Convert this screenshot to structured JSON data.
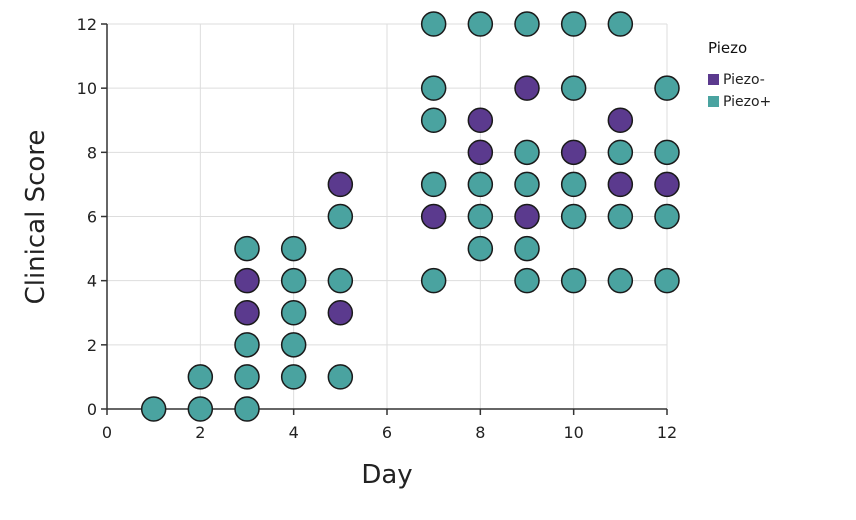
{
  "chart_data": {
    "type": "scatter",
    "title": "",
    "xlabel": "Day",
    "ylabel": "Clinical Score",
    "xlim": [
      0,
      12
    ],
    "ylim": [
      0,
      12
    ],
    "xticks": [
      0,
      2,
      4,
      6,
      8,
      10,
      12
    ],
    "yticks": [
      0,
      2,
      4,
      6,
      8,
      10,
      12
    ],
    "grid": true,
    "legend": {
      "title": "Piezo",
      "position": "top-right"
    },
    "series": [
      {
        "name": "Piezo-",
        "color": "#5b3a8e",
        "points": [
          [
            3,
            4
          ],
          [
            3,
            3
          ],
          [
            5,
            7
          ],
          [
            5,
            3
          ],
          [
            7,
            6
          ],
          [
            8,
            9
          ],
          [
            8,
            8
          ],
          [
            9,
            10
          ],
          [
            9,
            6
          ],
          [
            10,
            8
          ],
          [
            11,
            9
          ],
          [
            11,
            7
          ],
          [
            12,
            7
          ]
        ]
      },
      {
        "name": "Piezo+",
        "color": "#4aa3a0",
        "points": [
          [
            1,
            0
          ],
          [
            2,
            1
          ],
          [
            2,
            0
          ],
          [
            3,
            5
          ],
          [
            3,
            2
          ],
          [
            3,
            1
          ],
          [
            3,
            0
          ],
          [
            4,
            5
          ],
          [
            4,
            4
          ],
          [
            4,
            3
          ],
          [
            4,
            2
          ],
          [
            4,
            1
          ],
          [
            5,
            6
          ],
          [
            5,
            4
          ],
          [
            5,
            1
          ],
          [
            7,
            12
          ],
          [
            7,
            10
          ],
          [
            7,
            9
          ],
          [
            7,
            7
          ],
          [
            7,
            4
          ],
          [
            8,
            12
          ],
          [
            8,
            7
          ],
          [
            8,
            6
          ],
          [
            8,
            5
          ],
          [
            9,
            12
          ],
          [
            9,
            8
          ],
          [
            9,
            7
          ],
          [
            9,
            5
          ],
          [
            9,
            4
          ],
          [
            10,
            12
          ],
          [
            10,
            10
          ],
          [
            10,
            7
          ],
          [
            10,
            6
          ],
          [
            10,
            4
          ],
          [
            11,
            12
          ],
          [
            11,
            8
          ],
          [
            11,
            6
          ],
          [
            11,
            4
          ],
          [
            12,
            10
          ],
          [
            12,
            8
          ],
          [
            12,
            6
          ],
          [
            12,
            4
          ]
        ]
      }
    ]
  }
}
